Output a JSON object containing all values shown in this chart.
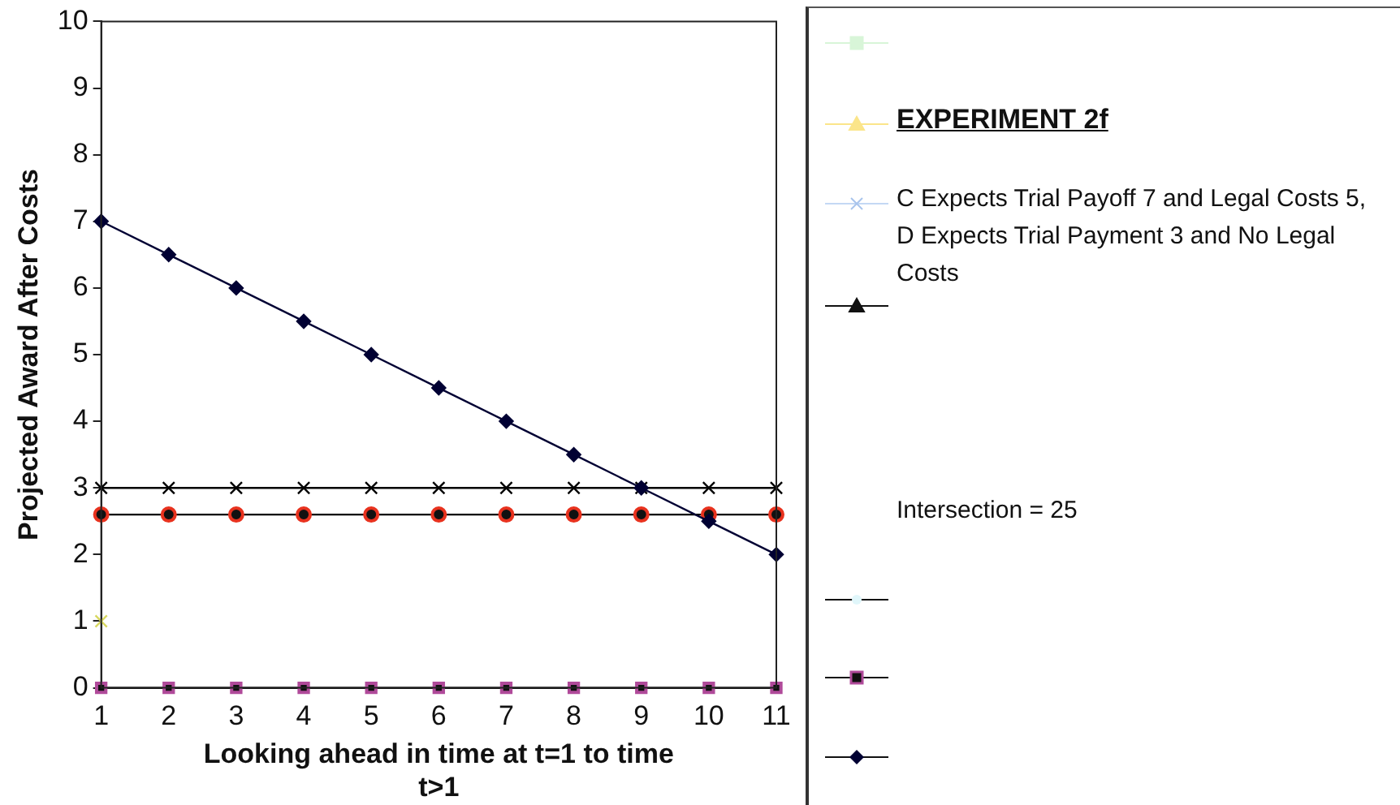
{
  "chart_data": {
    "type": "line",
    "title": "EXPERIMENT 2f",
    "xlabel": "Looking ahead in time at t=1 to time t>1",
    "ylabel": "Projected Award After Costs",
    "annotations": [
      "C Expects Trial Payoff 7 and Legal Costs 5, D Expects Trial Payment 3 and No Legal Costs",
      "Intersection = 25"
    ],
    "categories": [
      "1",
      "2",
      "3",
      "4",
      "5",
      "6",
      "7",
      "8",
      "9",
      "10",
      "11"
    ],
    "series": [
      {
        "marker": "diamond",
        "color": "#000033",
        "values": [
          7,
          6.5,
          6,
          5.5,
          5,
          4.5,
          4,
          3.5,
          3,
          2.5,
          2
        ]
      },
      {
        "marker": "cross",
        "color": "#000000",
        "values": [
          3,
          3,
          3,
          3,
          3,
          3,
          3,
          3,
          3,
          3,
          3
        ]
      },
      {
        "marker": "circle",
        "color": "#e8321e",
        "values": [
          2.6,
          2.6,
          2.6,
          2.6,
          2.6,
          2.6,
          2.6,
          2.6,
          2.6,
          2.6,
          2.6
        ]
      },
      {
        "type": "scatter",
        "marker": "cross",
        "color": "#d8d860",
        "x": [
          "1"
        ],
        "values": [
          1
        ]
      },
      {
        "marker": "square",
        "color": "#b04a9a",
        "values": [
          0,
          0,
          0,
          0,
          0,
          0,
          0,
          0,
          0,
          0,
          0
        ]
      }
    ],
    "ylim": [
      0,
      10
    ],
    "yticks": [
      0,
      1,
      2,
      3,
      4,
      5,
      6,
      7,
      8,
      9,
      10
    ],
    "grid": false,
    "legend": false
  }
}
